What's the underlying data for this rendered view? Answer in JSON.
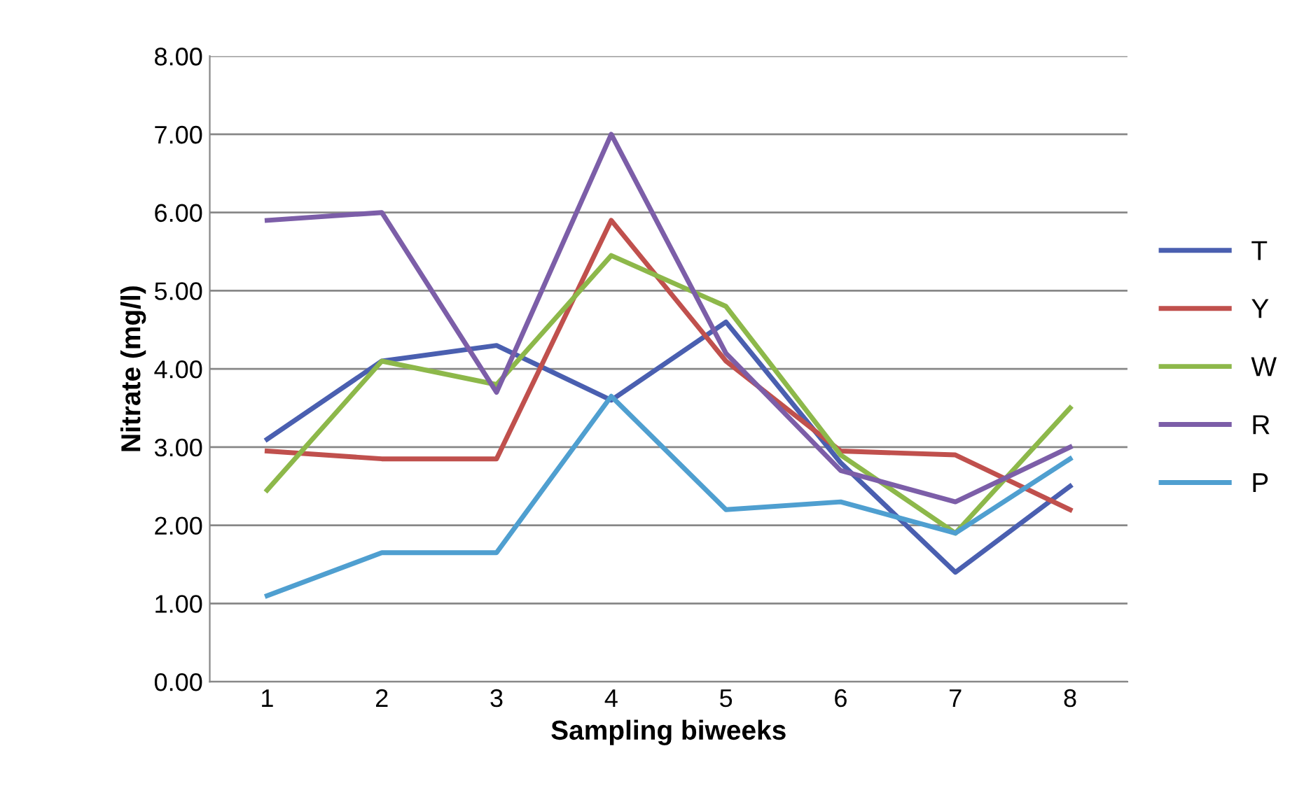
{
  "chart_data": {
    "type": "line",
    "xlabel": "Sampling biweeks",
    "ylabel": "Nitrate (mg/l)",
    "categories": [
      "1",
      "2",
      "3",
      "4",
      "5",
      "6",
      "7",
      "8"
    ],
    "series": [
      {
        "name": "T",
        "color": "#4a5fb0",
        "values": [
          3.1,
          4.1,
          4.3,
          3.6,
          4.6,
          2.8,
          1.4,
          2.5
        ]
      },
      {
        "name": "Y",
        "color": "#c0504d",
        "values": [
          2.95,
          2.85,
          2.85,
          5.9,
          4.1,
          2.95,
          2.9,
          2.2
        ]
      },
      {
        "name": "W",
        "color": "#8db84a",
        "values": [
          2.45,
          4.1,
          3.8,
          5.45,
          4.8,
          2.9,
          1.9,
          3.5
        ]
      },
      {
        "name": "R",
        "color": "#7c5ea8",
        "values": [
          5.9,
          6.0,
          3.7,
          7.0,
          4.2,
          2.7,
          2.3,
          3.0
        ]
      },
      {
        "name": "P",
        "color": "#4f9fd0",
        "values": [
          1.1,
          1.65,
          1.65,
          3.65,
          2.2,
          2.3,
          1.9,
          2.85
        ]
      }
    ],
    "ylim": [
      0,
      8
    ],
    "yticks": [
      {
        "value": 0,
        "label": "0.00"
      },
      {
        "value": 1,
        "label": "1.00"
      },
      {
        "value": 2,
        "label": "2.00"
      },
      {
        "value": 3,
        "label": "3.00"
      },
      {
        "value": 4,
        "label": "4.00"
      },
      {
        "value": 5,
        "label": "5.00"
      },
      {
        "value": 6,
        "label": "6.00"
      },
      {
        "value": 7,
        "label": "7.00"
      },
      {
        "value": 8,
        "label": "8.00"
      }
    ],
    "grid": "y",
    "legend": "right",
    "marker": "none",
    "line_style": "solid"
  }
}
